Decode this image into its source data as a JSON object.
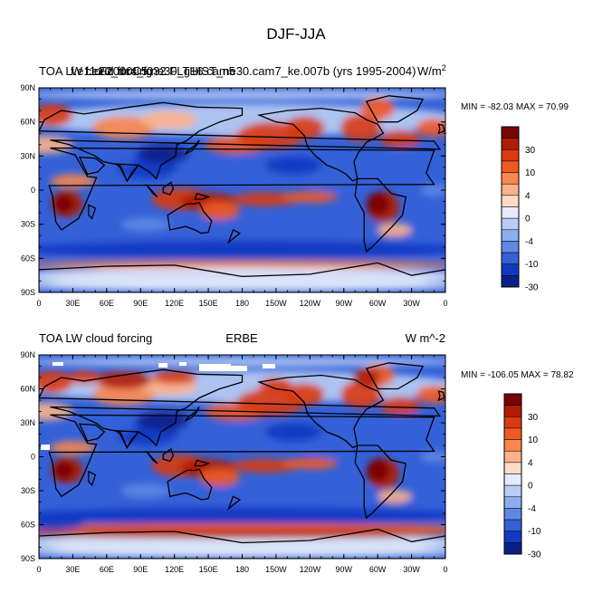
{
  "figure": {
    "title": "DJF-JJA"
  },
  "colors": {
    "levels": [
      "#7a0403",
      "#b01c06",
      "#d93a0f",
      "#ef5a22",
      "#f9864c",
      "#fcb18a",
      "#fcdcc6",
      "#e4ecfb",
      "#b9cdf4",
      "#8cadee",
      "#5f88e4",
      "#3461d8",
      "#1339c2",
      "#0b1f8a"
    ],
    "land_outline": "#000000",
    "ice": "#ffffff"
  },
  "colorbar": {
    "tick_labels": [
      "30",
      "10",
      "4",
      "0",
      "-4",
      "-10",
      "-30"
    ]
  },
  "panels": [
    {
      "id": "model",
      "left_title": "TOA LW cloud forcing",
      "center_title": "f.e11.F2000C5.ne30_g16.cam5",
      "overlap_title": "f.e20_dc4_f032 FLTHIST_ne30.cam7_ke.007b (yrs 1995-2004)",
      "right_title": "W/m",
      "right_title_sup": "2",
      "stats": "MIN = -82.03 MAX =  70.99",
      "lat_labels": [
        "90N",
        "60N",
        "30N",
        "0",
        "30S",
        "60S",
        "90S"
      ],
      "lon_labels": [
        "0",
        "30E",
        "60E",
        "90E",
        "120E",
        "150E",
        "180",
        "150W",
        "120W",
        "90W",
        "60W",
        "30W",
        "0"
      ]
    },
    {
      "id": "obs",
      "left_title": "TOA LW cloud forcing",
      "center_title": "ERBE",
      "right_title": "W m^-2",
      "stats": "MIN = -106.05 MAX =  78.82",
      "lat_labels": [
        "90N",
        "60N",
        "30N",
        "0",
        "30S",
        "60S",
        "90S"
      ],
      "lon_labels": [
        "0",
        "30E",
        "60E",
        "90E",
        "120E",
        "150E",
        "180",
        "150W",
        "120W",
        "90W",
        "60W",
        "30W",
        "0"
      ]
    }
  ]
}
